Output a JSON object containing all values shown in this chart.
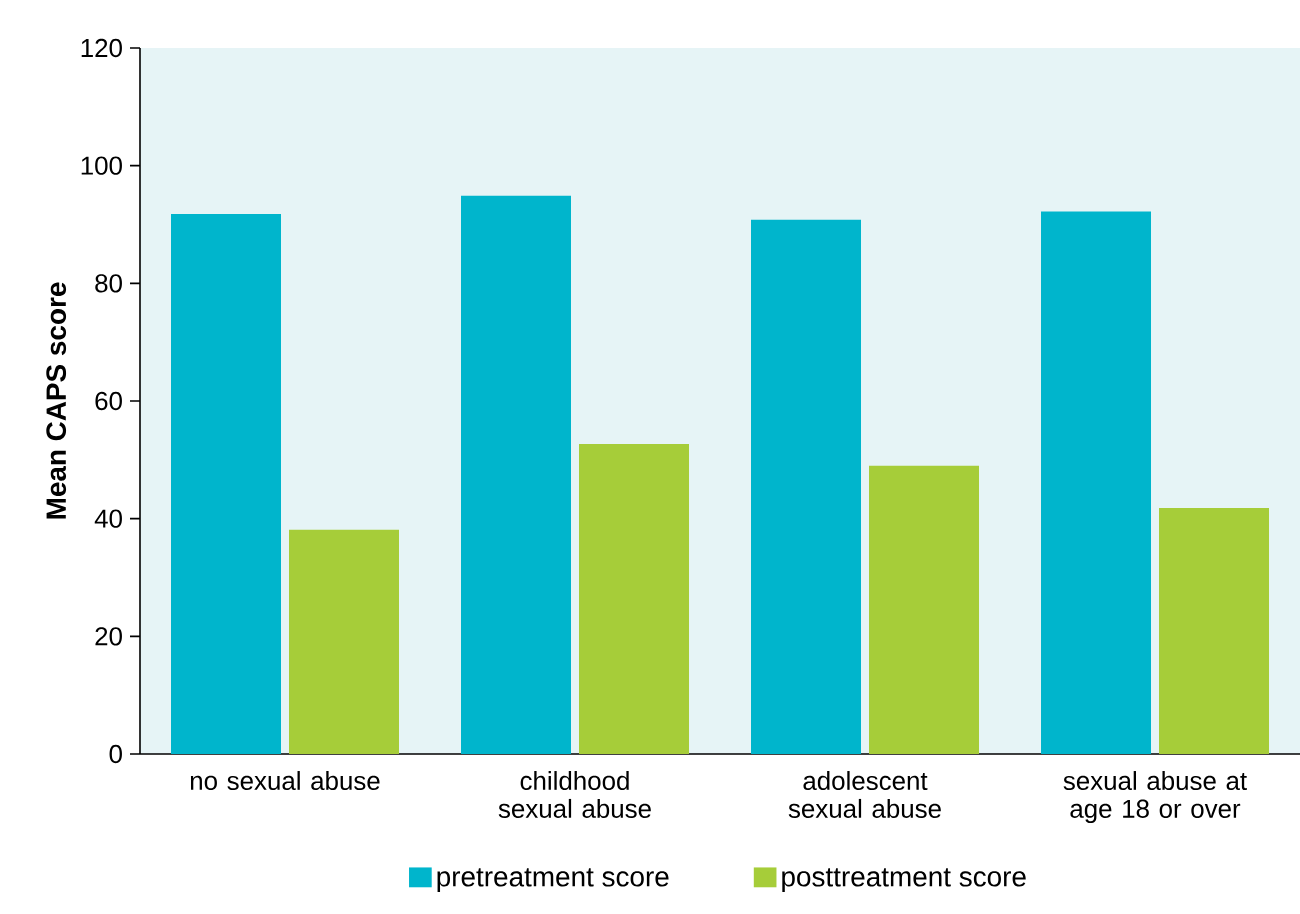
{
  "chart_data": {
    "type": "bar",
    "ylabel": "Mean CAPS score",
    "categories": [
      "no sexual abuse",
      "childhood sexual abuse",
      "adolescent sexual abuse",
      "sexual abuse at age 18 or over"
    ],
    "series": [
      {
        "name": "pretreatment score",
        "color": "#00b5cc",
        "values": [
          91.8,
          94.9,
          90.8,
          92.2
        ]
      },
      {
        "name": "posttreatment score",
        "color": "#a6cd39",
        "values": [
          38.1,
          52.7,
          49,
          41.8
        ]
      }
    ],
    "ylim": [
      0,
      120
    ],
    "yticks": [
      0,
      20,
      40,
      60,
      80,
      100,
      120
    ],
    "grid": false,
    "legend": "bottom"
  }
}
